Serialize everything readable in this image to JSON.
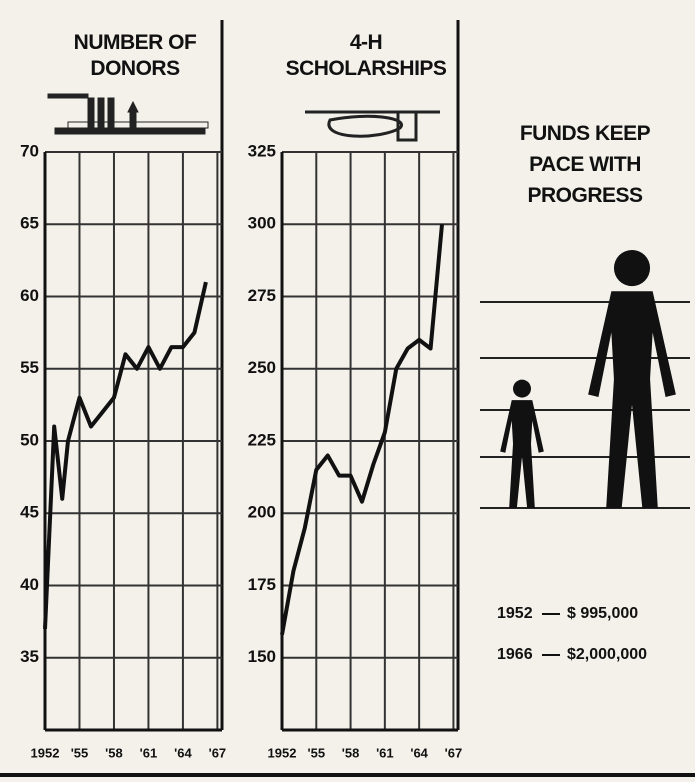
{
  "chart_data": [
    {
      "type": "line",
      "title": "NUMBER OF DONORS",
      "x": [
        1952,
        1952.8,
        1953.5,
        1954,
        1955,
        1956,
        1957,
        1958,
        1959,
        1960,
        1961,
        1962,
        1963,
        1964,
        1965,
        1966
      ],
      "values": [
        37,
        51,
        46,
        50,
        53,
        51,
        52,
        53,
        56,
        55,
        56.5,
        55,
        56.5,
        56.5,
        57.5,
        61
      ],
      "color": "#111111",
      "xlim": [
        1952,
        1967.4
      ],
      "xticks": [
        {
          "value": 1952,
          "label": "1952"
        },
        {
          "value": 1955,
          "label": "'55"
        },
        {
          "value": 1958,
          "label": "'58"
        },
        {
          "value": 1961,
          "label": "'61"
        },
        {
          "value": 1964,
          "label": "'64"
        },
        {
          "value": 1967,
          "label": "'67"
        }
      ],
      "ylim": [
        30,
        70
      ],
      "yticks": [
        35,
        40,
        45,
        50,
        55,
        60,
        65,
        70
      ],
      "grid": true
    },
    {
      "type": "line",
      "title": "4-H SCHOLARSHIPS",
      "x": [
        1952,
        1953,
        1954,
        1955,
        1956,
        1957,
        1958,
        1959,
        1960,
        1961,
        1962,
        1963,
        1964,
        1965,
        1966
      ],
      "values": [
        158,
        180,
        195,
        215,
        220,
        213,
        213,
        204,
        217,
        228,
        250,
        257,
        260,
        257,
        300
      ],
      "color": "#111111",
      "xlim": [
        1952,
        1967.4
      ],
      "xticks": [
        {
          "value": 1952,
          "label": "1952"
        },
        {
          "value": 1955,
          "label": "'55"
        },
        {
          "value": 1958,
          "label": "'58"
        },
        {
          "value": 1961,
          "label": "'61"
        },
        {
          "value": 1964,
          "label": "'64"
        },
        {
          "value": 1967,
          "label": "'67"
        }
      ],
      "ylim": [
        125,
        325
      ],
      "yticks": [
        150,
        175,
        200,
        225,
        250,
        275,
        300,
        325
      ],
      "grid": true
    },
    {
      "type": "pictogram",
      "title": "FUNDS KEEP PACE WITH PROGRESS",
      "categories": [
        "1952",
        "1966"
      ],
      "values": [
        995000,
        2000000
      ],
      "value_labels": [
        "$ 995,000",
        "$2,000,000"
      ],
      "color": "#111111"
    }
  ]
}
